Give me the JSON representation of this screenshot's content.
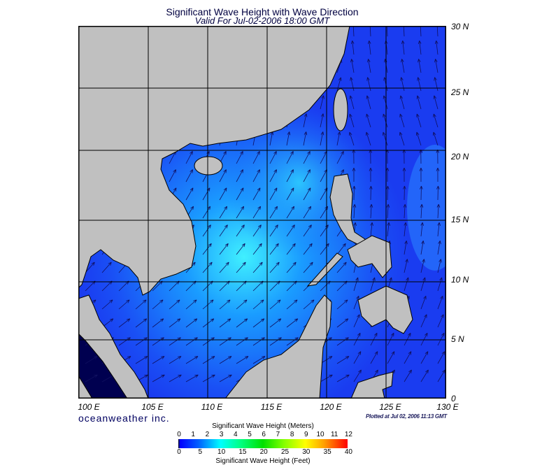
{
  "title": "Significant Wave Height with Wave Direction",
  "subtitle": "Valid For Jul-02-2006 18:00 GMT",
  "lon_labels": [
    "100 E",
    "105 E",
    "110 E",
    "115 E",
    "120 E",
    "125 E",
    "130 E"
  ],
  "lat_labels": [
    "30 N",
    "25 N",
    "20 N",
    "15 N",
    "10 N",
    "5 N",
    "0"
  ],
  "brand": "oceanweather inc.",
  "plotted": "Plotted at Jul 02, 2006 11:13 GMT",
  "colorbar": {
    "meters_title": "Significant Wave Height (Meters)",
    "meters_ticks": [
      "0",
      "1",
      "2",
      "3",
      "4",
      "5",
      "6",
      "7",
      "8",
      "9",
      "10",
      "11",
      "12"
    ],
    "feet_ticks": [
      "0",
      "5",
      "10",
      "15",
      "20",
      "25",
      "30",
      "35",
      "40"
    ],
    "feet_title": "Significant Wave Height (Feet)"
  },
  "colors": {
    "land": "#c0c0c0",
    "sea": "#1a3cf0",
    "high": "#40e8ff"
  }
}
